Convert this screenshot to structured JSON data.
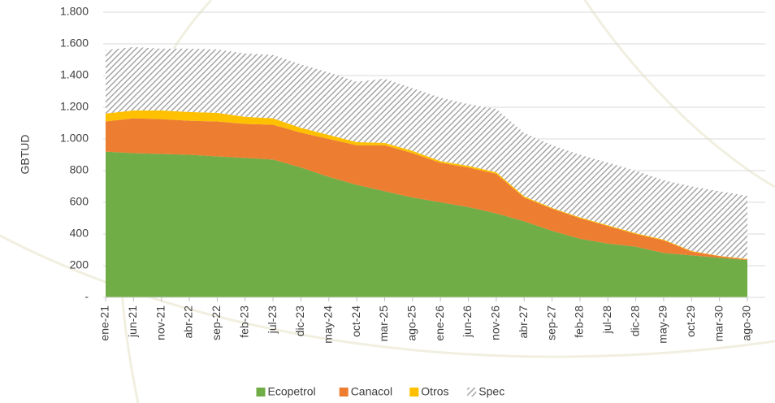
{
  "chart_data": {
    "type": "stacked-area",
    "y_label": "GBTUD",
    "categories": [
      "ene-21",
      "jun-21",
      "nov-21",
      "abr-22",
      "sep-22",
      "feb-23",
      "jul-23",
      "dic-23",
      "may-24",
      "oct-24",
      "mar-25",
      "ago-25",
      "ene-26",
      "jun-26",
      "nov-26",
      "abr-27",
      "sep-27",
      "feb-28",
      "jul-28",
      "dic-28",
      "may-29",
      "oct-29",
      "mar-30",
      "ago-30"
    ],
    "series": [
      {
        "name": "Ecopetrol",
        "color": "#70ad47",
        "values": [
          920,
          910,
          905,
          900,
          890,
          880,
          870,
          820,
          760,
          710,
          670,
          630,
          600,
          570,
          530,
          480,
          420,
          370,
          340,
          320,
          280,
          265,
          250,
          235
        ]
      },
      {
        "name": "Canacol",
        "color": "#ed7d31",
        "values": [
          190,
          220,
          220,
          215,
          220,
          215,
          220,
          220,
          240,
          250,
          290,
          280,
          250,
          250,
          250,
          150,
          140,
          130,
          110,
          80,
          80,
          25,
          10,
          5
        ]
      },
      {
        "name": "Otros",
        "color": "#ffc000",
        "values": [
          50,
          50,
          55,
          55,
          55,
          45,
          40,
          30,
          25,
          20,
          15,
          15,
          10,
          10,
          10,
          8,
          5,
          5,
          5,
          5,
          5,
          3,
          2,
          2
        ]
      },
      {
        "name": "Spec",
        "color": "#a6a6a6",
        "pattern": "hatch",
        "values": [
          400,
          400,
          390,
          400,
          400,
          400,
          400,
          400,
          395,
          380,
          405,
          395,
          400,
          390,
          400,
          400,
          395,
          395,
          395,
          395,
          375,
          407,
          408,
          398
        ]
      }
    ],
    "ylim": [
      0,
      1800
    ],
    "yticks": [
      {
        "value": 0,
        "label": "-"
      },
      {
        "value": 200,
        "label": "200"
      },
      {
        "value": 400,
        "label": "400"
      },
      {
        "value": 600,
        "label": "600"
      },
      {
        "value": 800,
        "label": "800"
      },
      {
        "value": 1000,
        "label": "1.000"
      },
      {
        "value": 1200,
        "label": "1.200"
      },
      {
        "value": 1400,
        "label": "1.400"
      },
      {
        "value": 1600,
        "label": "1.600"
      },
      {
        "value": 1800,
        "label": "1.800"
      }
    ],
    "grid": true,
    "legend": "bottom"
  }
}
